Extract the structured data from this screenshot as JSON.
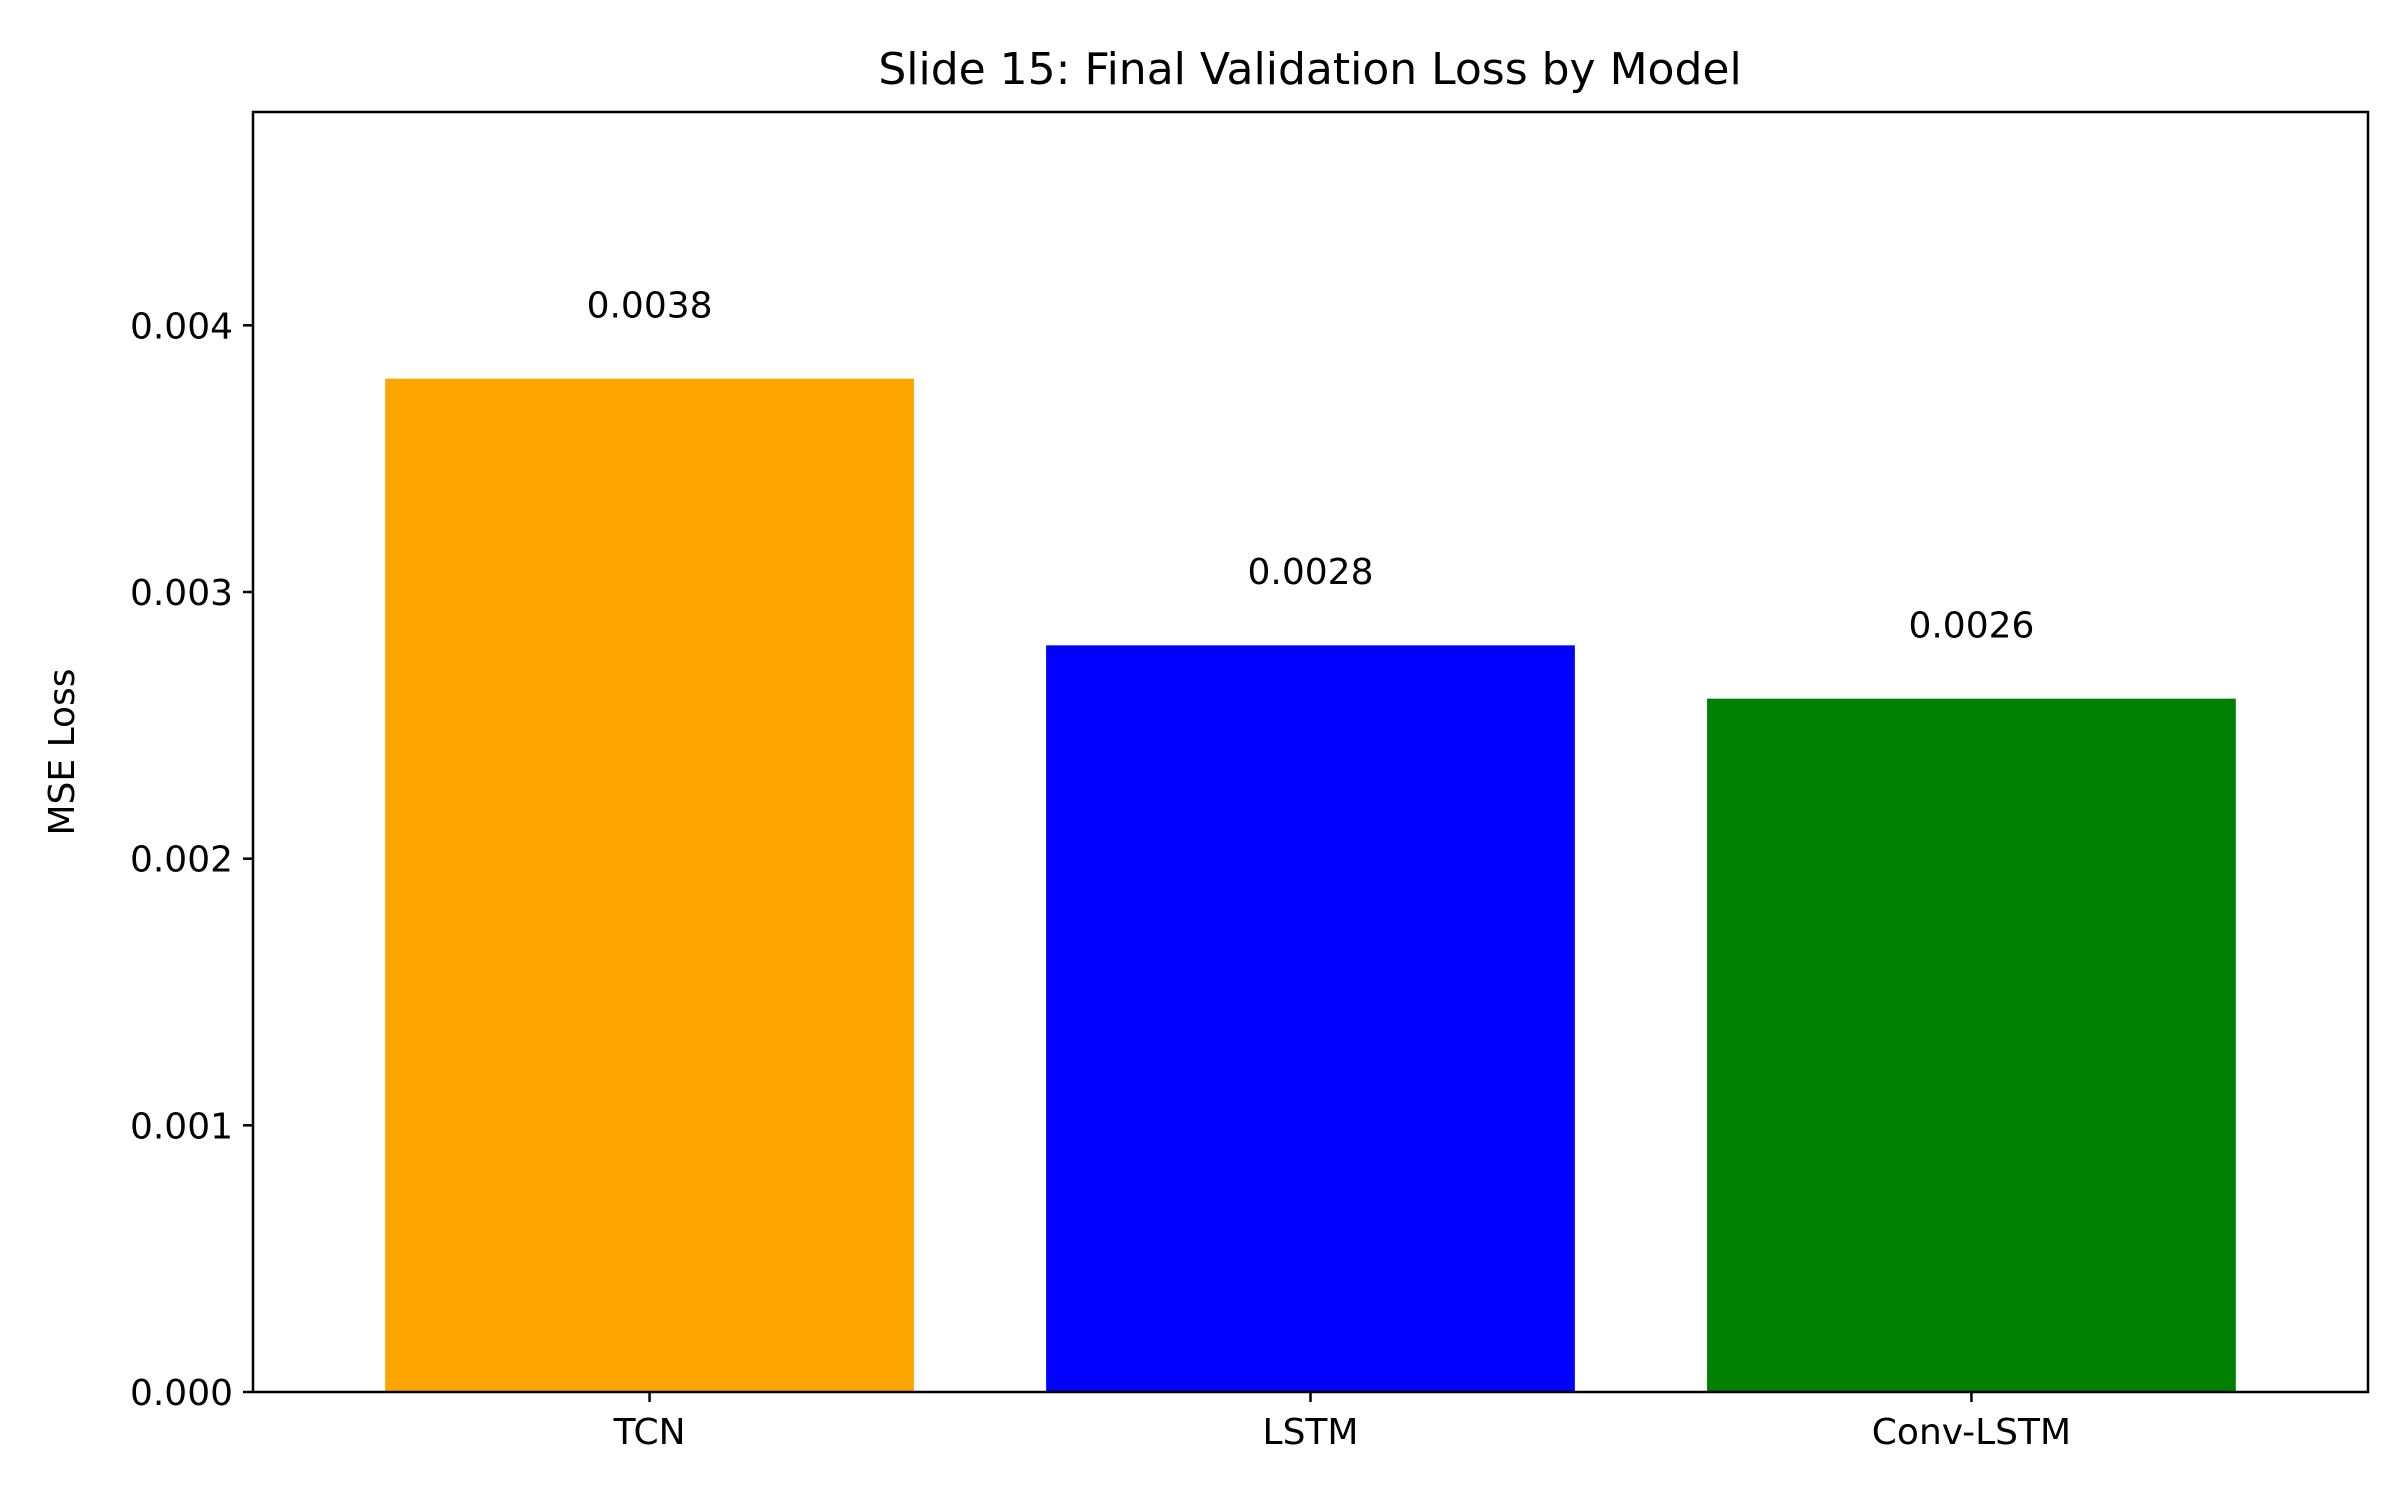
{
  "chart_data": {
    "type": "bar",
    "title": "Slide 15: Final Validation Loss by Model",
    "xlabel": "",
    "ylabel": "MSE Loss",
    "categories": [
      "TCN",
      "LSTM",
      "Conv-LSTM"
    ],
    "values": [
      0.0038,
      0.0028,
      0.0026
    ],
    "data_labels": [
      "0.0038",
      "0.0028",
      "0.0026"
    ],
    "colors": [
      "#FFA500",
      "#0000FF",
      "#008000"
    ],
    "ylim": [
      0,
      0.0048
    ],
    "yticks": [
      0,
      0.001,
      0.002,
      0.003,
      0.004
    ],
    "ytick_labels": [
      "0.000",
      "0.001",
      "0.002",
      "0.003",
      "0.004"
    ],
    "grid": false,
    "legend": "none"
  }
}
